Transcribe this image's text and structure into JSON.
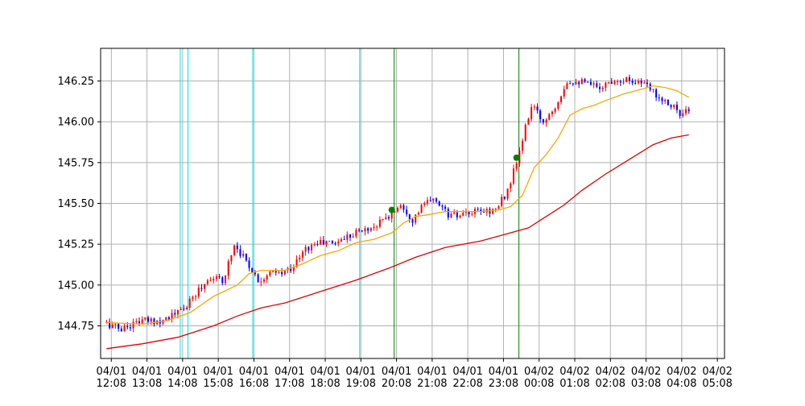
{
  "chart_data": {
    "type": "candlestick",
    "title": "",
    "xlabel": "",
    "ylabel": "",
    "ylim": [
      144.55,
      146.45
    ],
    "xlim": [
      "04/01 11:50",
      "04/02 05:20"
    ],
    "grid": true,
    "colors": {
      "up": "#ff0000",
      "down": "#0000ff",
      "ma_short": "#ffa500",
      "ma_long": "#e00000",
      "signal_cyan": "#00e5e5",
      "signal_green": "#008000",
      "grid": "#b0b0b0"
    },
    "x_ticks": [
      {
        "date": "04/01",
        "time": "12:08"
      },
      {
        "date": "04/01",
        "time": "13:08"
      },
      {
        "date": "04/01",
        "time": "14:08"
      },
      {
        "date": "04/01",
        "time": "15:08"
      },
      {
        "date": "04/01",
        "time": "16:08"
      },
      {
        "date": "04/01",
        "time": "17:08"
      },
      {
        "date": "04/01",
        "time": "18:08"
      },
      {
        "date": "04/01",
        "time": "19:08"
      },
      {
        "date": "04/01",
        "time": "20:08"
      },
      {
        "date": "04/01",
        "time": "21:08"
      },
      {
        "date": "04/01",
        "time": "22:08"
      },
      {
        "date": "04/01",
        "time": "23:08"
      },
      {
        "date": "04/02",
        "time": "00:08"
      },
      {
        "date": "04/02",
        "time": "01:08"
      },
      {
        "date": "04/02",
        "time": "02:08"
      },
      {
        "date": "04/02",
        "time": "03:08"
      },
      {
        "date": "04/02",
        "time": "04:08"
      },
      {
        "date": "04/02",
        "time": "05:08"
      }
    ],
    "y_ticks": [
      "144.75",
      "145.00",
      "145.25",
      "145.50",
      "145.75",
      "146.00",
      "146.25"
    ],
    "anchors": [
      [
        "04/01 12:00",
        144.77
      ],
      [
        "04/01 12:30",
        144.73
      ],
      [
        "04/01 13:00",
        144.78
      ],
      [
        "04/01 13:30",
        144.78
      ],
      [
        "04/01 14:00",
        144.82
      ],
      [
        "04/01 14:20",
        144.87
      ],
      [
        "04/01 14:40",
        144.97
      ],
      [
        "04/01 15:00",
        145.05
      ],
      [
        "04/01 15:20",
        145.02
      ],
      [
        "04/01 15:40",
        145.25
      ],
      [
        "04/01 16:00",
        145.15
      ],
      [
        "04/01 16:20",
        145.03
      ],
      [
        "04/01 16:40",
        145.07
      ],
      [
        "04/01 17:00",
        145.07
      ],
      [
        "04/01 17:20",
        145.12
      ],
      [
        "04/01 17:40",
        145.22
      ],
      [
        "04/01 18:00",
        145.26
      ],
      [
        "04/01 18:30",
        145.26
      ],
      [
        "04/01 19:00",
        145.32
      ],
      [
        "04/01 19:30",
        145.35
      ],
      [
        "04/01 20:00",
        145.42
      ],
      [
        "04/01 20:20",
        145.5
      ],
      [
        "04/01 20:40",
        145.4
      ],
      [
        "04/01 21:00",
        145.5
      ],
      [
        "04/01 21:20",
        145.52
      ],
      [
        "04/01 21:40",
        145.43
      ],
      [
        "04/01 22:00",
        145.42
      ],
      [
        "04/01 22:30",
        145.45
      ],
      [
        "04/01 23:00",
        145.46
      ],
      [
        "04/01 23:20",
        145.58
      ],
      [
        "04/01 23:35",
        145.75
      ],
      [
        "04/02 00:00",
        146.1
      ],
      [
        "04/02 00:20",
        146.0
      ],
      [
        "04/02 00:40",
        146.1
      ],
      [
        "04/02 01:00",
        146.25
      ],
      [
        "04/02 01:20",
        146.25
      ],
      [
        "04/02 01:40",
        146.22
      ],
      [
        "04/02 02:00",
        146.22
      ],
      [
        "04/02 02:20",
        146.26
      ],
      [
        "04/02 02:40",
        146.26
      ],
      [
        "04/02 03:00",
        146.25
      ],
      [
        "04/02 03:20",
        146.2
      ],
      [
        "04/02 03:40",
        146.14
      ],
      [
        "04/02 04:00",
        146.1
      ],
      [
        "04/02 04:10",
        146.03
      ],
      [
        "04/02 04:20",
        146.06
      ]
    ],
    "ma_short": [
      [
        "04/01 12:00",
        144.77
      ],
      [
        "04/01 13:00",
        144.76
      ],
      [
        "04/01 13:40",
        144.78
      ],
      [
        "04/01 14:20",
        144.83
      ],
      [
        "04/01 15:00",
        144.93
      ],
      [
        "04/01 15:40",
        145.0
      ],
      [
        "04/01 16:00",
        145.07
      ],
      [
        "04/01 16:20",
        145.09
      ],
      [
        "04/01 17:00",
        145.09
      ],
      [
        "04/01 17:30",
        145.13
      ],
      [
        "04/01 18:00",
        145.18
      ],
      [
        "04/01 18:30",
        145.21
      ],
      [
        "04/01 19:00",
        145.26
      ],
      [
        "04/01 19:30",
        145.28
      ],
      [
        "04/01 20:00",
        145.32
      ],
      [
        "04/01 20:20",
        145.38
      ],
      [
        "04/01 20:40",
        145.42
      ],
      [
        "04/01 21:00",
        145.43
      ],
      [
        "04/01 21:30",
        145.45
      ],
      [
        "04/01 22:00",
        145.45
      ],
      [
        "04/01 22:30",
        145.45
      ],
      [
        "04/01 23:00",
        145.46
      ],
      [
        "04/01 23:20",
        145.48
      ],
      [
        "04/01 23:40",
        145.55
      ],
      [
        "04/02 00:00",
        145.72
      ],
      [
        "04/02 00:20",
        145.8
      ],
      [
        "04/02 00:40",
        145.9
      ],
      [
        "04/02 01:00",
        146.04
      ],
      [
        "04/02 01:20",
        146.08
      ],
      [
        "04/02 01:40",
        146.1
      ],
      [
        "04/02 02:00",
        146.13
      ],
      [
        "04/02 02:30",
        146.17
      ],
      [
        "04/02 03:00",
        146.2
      ],
      [
        "04/02 03:20",
        146.22
      ],
      [
        "04/02 03:40",
        146.21
      ],
      [
        "04/02 04:00",
        146.19
      ],
      [
        "04/02 04:20",
        146.15
      ]
    ],
    "ma_long": [
      [
        "04/01 12:00",
        144.61
      ],
      [
        "04/01 13:00",
        144.64
      ],
      [
        "04/01 14:00",
        144.68
      ],
      [
        "04/01 15:00",
        144.75
      ],
      [
        "04/01 15:40",
        144.81
      ],
      [
        "04/01 16:20",
        144.86
      ],
      [
        "04/01 17:00",
        144.89
      ],
      [
        "04/01 18:00",
        144.96
      ],
      [
        "04/01 19:00",
        145.03
      ],
      [
        "04/01 20:00",
        145.11
      ],
      [
        "04/01 20:40",
        145.17
      ],
      [
        "04/01 21:30",
        145.23
      ],
      [
        "04/01 22:30",
        145.27
      ],
      [
        "04/01 23:20",
        145.32
      ],
      [
        "04/01 23:50",
        145.35
      ],
      [
        "04/02 00:20",
        145.42
      ],
      [
        "04/02 00:50",
        145.49
      ],
      [
        "04/02 01:20",
        145.58
      ],
      [
        "04/02 02:00",
        145.68
      ],
      [
        "04/02 02:40",
        145.77
      ],
      [
        "04/02 03:20",
        145.86
      ],
      [
        "04/02 03:50",
        145.9
      ],
      [
        "04/02 04:20",
        145.92
      ]
    ],
    "signal_lines": [
      {
        "x": "04/01 14:04",
        "color": "cyan"
      },
      {
        "x": "04/01 14:17",
        "color": "cyan"
      },
      {
        "x": "04/01 16:06",
        "color": "cyan"
      },
      {
        "x": "04/01 19:06",
        "color": "cyan"
      },
      {
        "x": "04/01 20:04",
        "color": "green"
      },
      {
        "x": "04/01 23:34",
        "color": "green"
      }
    ],
    "signal_markers": [
      {
        "x": "04/01 20:00",
        "y": 145.46
      },
      {
        "x": "04/01 23:30",
        "y": 145.78
      }
    ]
  }
}
